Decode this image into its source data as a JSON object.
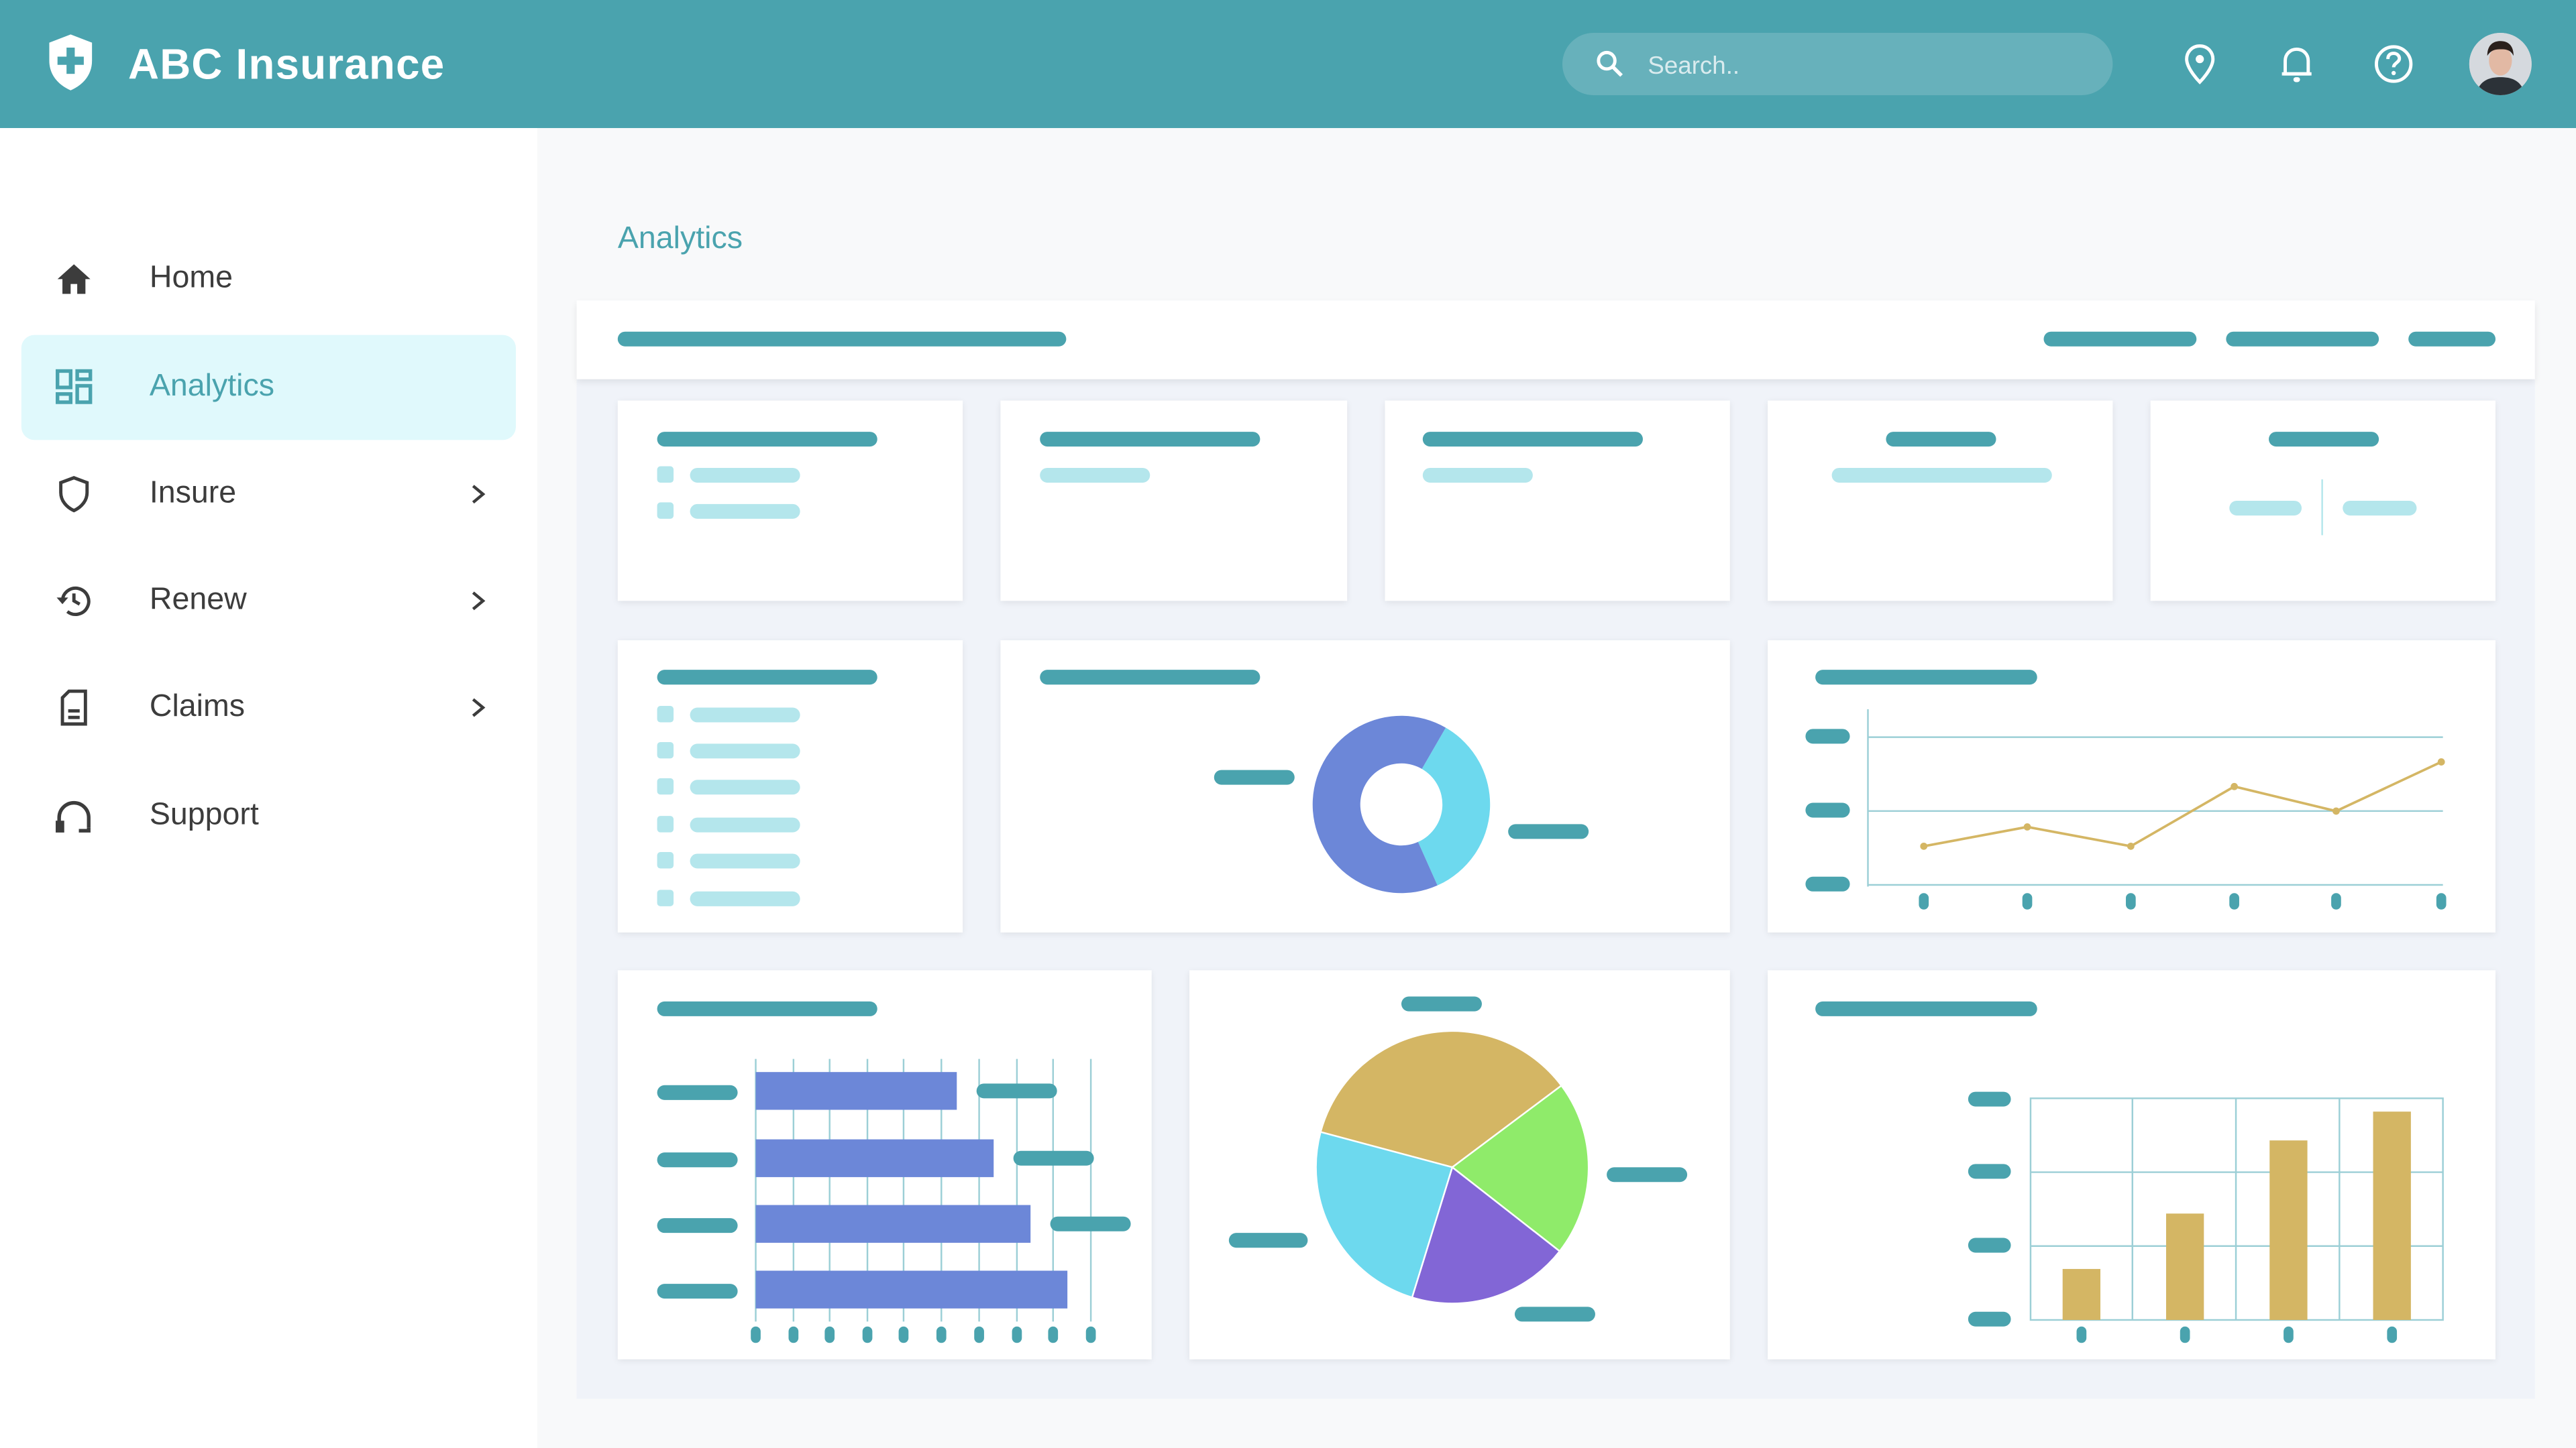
{
  "header": {
    "title": "ABC Insurance",
    "search_placeholder": "Search..",
    "icons": [
      "location-pin-icon",
      "bell-icon",
      "help-icon"
    ],
    "avatar": "user-avatar"
  },
  "sidebar": {
    "items": [
      {
        "label": "Home",
        "icon": "home-icon",
        "active": false,
        "has_submenu": false
      },
      {
        "label": "Analytics",
        "icon": "dashboard-icon",
        "active": true,
        "has_submenu": false
      },
      {
        "label": "Insure",
        "icon": "shield-icon",
        "active": false,
        "has_submenu": true
      },
      {
        "label": "Renew",
        "icon": "history-icon",
        "active": false,
        "has_submenu": true
      },
      {
        "label": "Claims",
        "icon": "document-icon",
        "active": false,
        "has_submenu": true
      },
      {
        "label": "Support",
        "icon": "headset-icon",
        "active": false,
        "has_submenu": false
      }
    ]
  },
  "main": {
    "title": "Analytics"
  },
  "colors": {
    "brand": "#4AA3AE",
    "active_bg": "#E0F9FC",
    "placeholder_light": "#B4E6EC",
    "blue": "#6C87D8",
    "cyan": "#6DD9EE",
    "gold": "#D4B664",
    "green": "#8FEB6A",
    "purple": "#8266D6"
  },
  "chart_data": [
    {
      "type": "pie",
      "variant": "donut",
      "values": [
        65,
        35
      ]
    },
    {
      "type": "line",
      "values": [
        22,
        33,
        22,
        56,
        42,
        70
      ],
      "ylim": [
        0,
        100
      ],
      "grid": true
    },
    {
      "type": "bar",
      "orientation": "horizontal",
      "values": [
        60,
        71,
        82,
        93
      ],
      "xlim": [
        0,
        100
      ],
      "grid": true
    },
    {
      "type": "pie",
      "values": [
        35.6,
        20.8,
        19.2,
        24.4
      ]
    },
    {
      "type": "bar",
      "orientation": "vertical",
      "values": [
        23,
        48,
        81,
        94
      ],
      "ylim": [
        0,
        100
      ],
      "grid": true
    }
  ]
}
